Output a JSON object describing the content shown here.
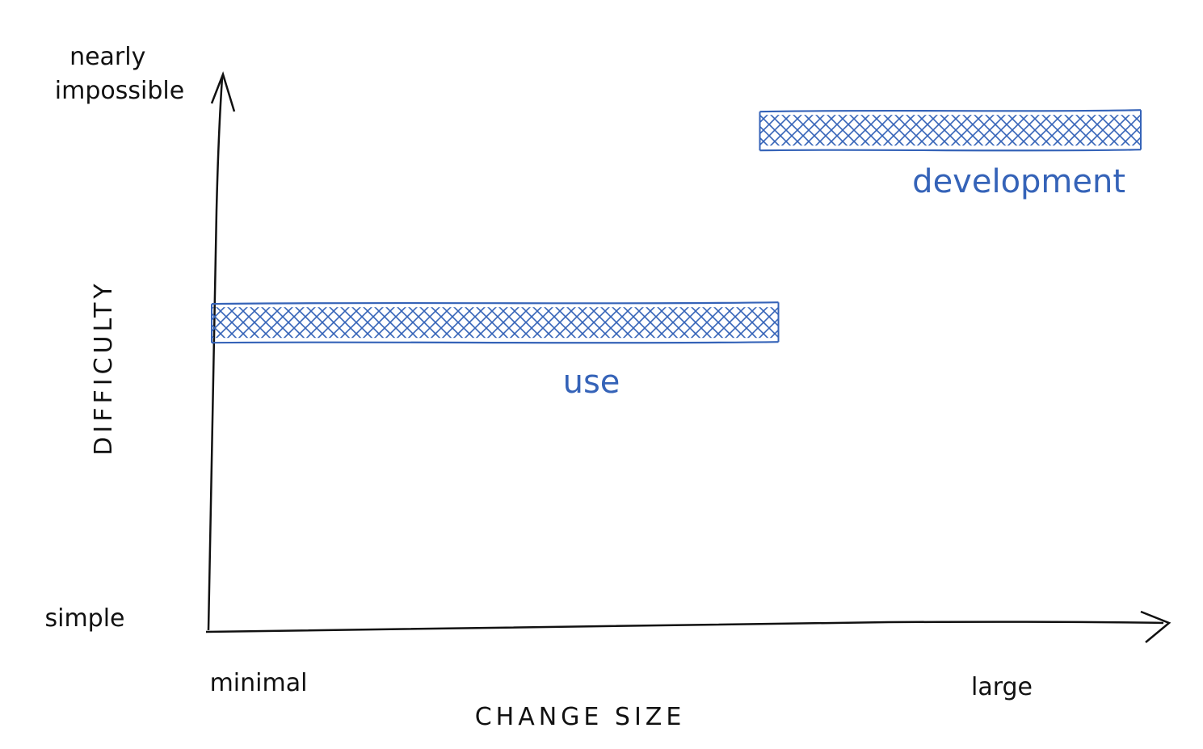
{
  "chart_data": {
    "type": "bar",
    "orientation": "horizontal-range",
    "title": "",
    "xlabel": "CHANGE SIZE",
    "ylabel": "DIFFICULTY",
    "x_tick_labels": {
      "min": "minimal",
      "max": "large"
    },
    "y_tick_labels": {
      "min": "simple",
      "max": "nearly impossible"
    },
    "xlim": [
      0,
      1
    ],
    "ylim": [
      0,
      1
    ],
    "grid": false,
    "legend": "none",
    "series": [
      {
        "name": "use",
        "x_start": 0.0,
        "x_end": 0.61,
        "y": 0.56
      },
      {
        "name": "development",
        "x_start": 0.59,
        "x_end": 1.0,
        "y": 0.91
      }
    ],
    "colors": {
      "axis": "#111111",
      "band": "#3563b8",
      "label": "#3563b8"
    }
  }
}
